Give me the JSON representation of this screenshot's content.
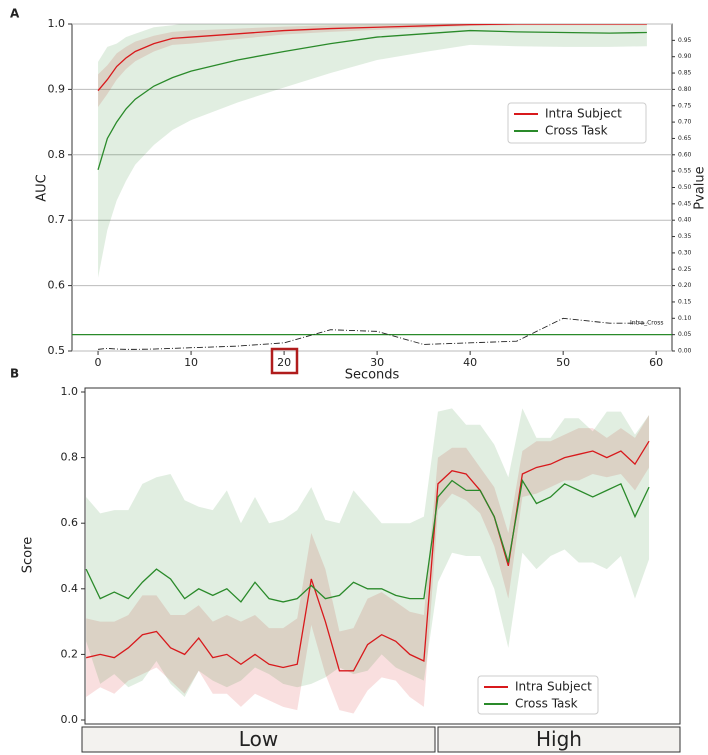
{
  "chart_data": [
    {
      "type": "line",
      "panel": "A",
      "xlabel": "Seconds",
      "ylabel": "AUC",
      "y2label": "Pvalue",
      "x": [
        0,
        1,
        2,
        3,
        4,
        6,
        8,
        10,
        15,
        20,
        25,
        30,
        35,
        40,
        45,
        50,
        55,
        59
      ],
      "series": [
        {
          "name": "Intra Subject",
          "color": "#d8191c",
          "values": [
            0.898,
            0.915,
            0.935,
            0.948,
            0.958,
            0.97,
            0.978,
            0.98,
            0.985,
            0.99,
            0.993,
            0.995,
            0.997,
            0.999,
            1.0,
            1.0,
            1.0,
            1.0
          ],
          "errors": [
            0.025,
            0.022,
            0.02,
            0.017,
            0.015,
            0.012,
            0.01,
            0.01,
            0.008,
            0.006,
            0.005,
            0.004,
            0.003,
            0.002,
            0.002,
            0.002,
            0.002,
            0.002
          ]
        },
        {
          "name": "Cross Task",
          "color": "#2a8a2a",
          "values": [
            0.777,
            0.825,
            0.85,
            0.87,
            0.885,
            0.905,
            0.918,
            0.928,
            0.945,
            0.958,
            0.97,
            0.98,
            0.985,
            0.99,
            0.988,
            0.987,
            0.986,
            0.987
          ],
          "errors": [
            0.165,
            0.14,
            0.12,
            0.11,
            0.1,
            0.09,
            0.08,
            0.075,
            0.065,
            0.055,
            0.045,
            0.035,
            0.028,
            0.022,
            0.022,
            0.022,
            0.021,
            0.021
          ]
        },
        {
          "color": "#222222",
          "axis": "y2",
          "dash": true,
          "values": [
            0.005,
            0.008,
            0.006,
            0.005,
            0.005,
            0.006,
            0.008,
            0.01,
            0.015,
            0.025,
            0.065,
            0.06,
            0.02,
            0.025,
            0.03,
            0.1,
            0.085,
            0.085
          ]
        }
      ],
      "hlines": [
        {
          "value": 0.05,
          "axis": "y2",
          "color": "#2a8a2a"
        }
      ],
      "annotation": "Intra_Cross",
      "xlim": [
        -2.8,
        61.7
      ],
      "xticks": [
        0,
        10,
        20,
        30,
        40,
        50,
        60
      ],
      "ylim": [
        0.5,
        1.0
      ],
      "yticks": [
        0.5,
        0.6,
        0.7,
        0.8,
        0.9,
        {
          "value": 1,
          "label": "1.0"
        }
      ],
      "y2lim": [
        0,
        1
      ],
      "y2ticks": [
        {
          "value": 0,
          "label": "0.00"
        },
        {
          "value": 0.05,
          "label": "0.05"
        },
        {
          "value": 0.1,
          "label": "0.10"
        },
        {
          "value": 0.15,
          "label": "0.15"
        },
        {
          "value": 0.2,
          "label": "0.20"
        },
        {
          "value": 0.25,
          "label": "0.25"
        },
        {
          "value": 0.3,
          "label": "0.30"
        },
        {
          "value": 0.35,
          "label": "0.35"
        },
        {
          "value": 0.4,
          "label": "0.40"
        },
        {
          "value": 0.45,
          "label": "0.45"
        },
        {
          "value": 0.5,
          "label": "0.50"
        },
        {
          "value": 0.55,
          "label": "0.55"
        },
        {
          "value": 0.6,
          "label": "0.60"
        },
        {
          "value": 0.65,
          "label": "0.65"
        },
        {
          "value": 0.7,
          "label": "0.70"
        },
        {
          "value": 0.75,
          "label": "0.75"
        },
        {
          "value": 0.8,
          "label": "0.80"
        },
        {
          "value": 0.85,
          "label": "0.85"
        },
        {
          "value": 0.9,
          "label": "0.90"
        },
        {
          "value": 0.95,
          "label": "0.95"
        }
      ],
      "grid": true,
      "legend": "center right"
    },
    {
      "type": "line",
      "panel": "B",
      "ylabel": "Score",
      "x": [
        0,
        2.5,
        5,
        7.5,
        10,
        12.5,
        15,
        17.5,
        20,
        22.5,
        25,
        27.5,
        30,
        32.5,
        35,
        37.5,
        40,
        42.5,
        45,
        47.5,
        50,
        52.5,
        55,
        57.5,
        60,
        62.5,
        65,
        67.5,
        70,
        72.5,
        75,
        77.5,
        80,
        82.5,
        85,
        87.5,
        90,
        92.5,
        95,
        97.5,
        100
      ],
      "series": [
        {
          "name": "Intra Subject",
          "color": "#d8191c",
          "values": [
            0.19,
            0.2,
            0.19,
            0.22,
            0.26,
            0.27,
            0.22,
            0.2,
            0.25,
            0.19,
            0.2,
            0.17,
            0.2,
            0.17,
            0.16,
            0.17,
            0.43,
            0.3,
            0.15,
            0.15,
            0.23,
            0.26,
            0.24,
            0.2,
            0.18,
            0.72,
            0.76,
            0.75,
            0.7,
            0.62,
            0.47,
            0.75,
            0.77,
            0.78,
            0.8,
            0.81,
            0.82,
            0.8,
            0.82,
            0.78,
            0.85
          ],
          "errors": [
            0.12,
            0.1,
            0.11,
            0.1,
            0.12,
            0.11,
            0.1,
            0.12,
            0.1,
            0.11,
            0.12,
            0.13,
            0.12,
            0.11,
            0.12,
            0.14,
            0.14,
            0.16,
            0.12,
            0.13,
            0.14,
            0.13,
            0.12,
            0.13,
            0.14,
            0.08,
            0.07,
            0.08,
            0.07,
            0.09,
            0.1,
            0.07,
            0.08,
            0.07,
            0.07,
            0.08,
            0.07,
            0.06,
            0.07,
            0.08,
            0.08
          ]
        },
        {
          "name": "Cross Task",
          "color": "#2a8a2a",
          "values": [
            0.46,
            0.37,
            0.39,
            0.37,
            0.42,
            0.46,
            0.43,
            0.37,
            0.4,
            0.38,
            0.4,
            0.36,
            0.42,
            0.37,
            0.36,
            0.37,
            0.41,
            0.37,
            0.38,
            0.42,
            0.4,
            0.4,
            0.38,
            0.37,
            0.37,
            0.68,
            0.73,
            0.7,
            0.7,
            0.62,
            0.48,
            0.73,
            0.66,
            0.68,
            0.72,
            0.7,
            0.68,
            0.7,
            0.72,
            0.62,
            0.71
          ],
          "errors": [
            0.22,
            0.26,
            0.25,
            0.27,
            0.3,
            0.28,
            0.32,
            0.3,
            0.25,
            0.26,
            0.3,
            0.24,
            0.26,
            0.23,
            0.25,
            0.27,
            0.3,
            0.24,
            0.22,
            0.28,
            0.25,
            0.2,
            0.22,
            0.23,
            0.25,
            0.26,
            0.22,
            0.2,
            0.2,
            0.22,
            0.26,
            0.22,
            0.2,
            0.18,
            0.2,
            0.22,
            0.2,
            0.24,
            0.22,
            0.25,
            0.22
          ]
        }
      ],
      "x_groups": [
        "Low",
        "High"
      ],
      "xlim": [
        -0.2,
        105.5
      ],
      "ylim": [
        0,
        1
      ],
      "yticks": [
        {
          "value": 0,
          "label": "0.0"
        },
        0.2,
        0.4,
        0.6,
        0.8,
        {
          "value": 1,
          "label": "1.0"
        }
      ],
      "grid": false,
      "legend": "lower right"
    }
  ]
}
